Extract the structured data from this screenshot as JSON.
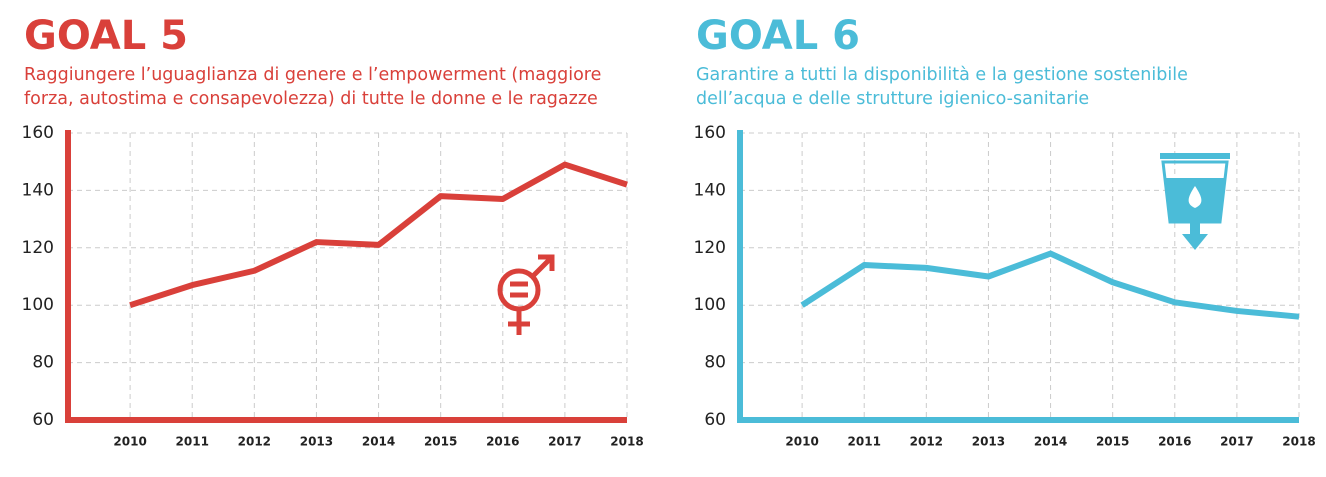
{
  "chart_data": [
    {
      "type": "line",
      "title": "GOAL 5",
      "subtitle": [
        "Raggiungere l’uguaglianza di genere e l’empowerment (maggiore",
        "forza, autostima e consapevolezza) di tutte le donne e le ragazze"
      ],
      "x": [
        2010,
        2011,
        2012,
        2013,
        2014,
        2015,
        2016,
        2017,
        2018
      ],
      "series": [
        {
          "color": "#d9403a",
          "values": [
            100,
            107,
            112,
            122,
            121,
            138,
            137,
            149,
            142
          ]
        }
      ],
      "xlim": [
        2009,
        2018
      ],
      "xticks": [
        2010,
        2011,
        2012,
        2013,
        2014,
        2015,
        2016,
        2017,
        2018
      ],
      "ylim": [
        60,
        160
      ],
      "yticks": [
        60,
        80,
        100,
        120,
        140,
        160
      ],
      "grid": true
    },
    {
      "type": "line",
      "title": "GOAL 6",
      "subtitle": [
        "Garantire a tutti la disponibilità e la gestione sostenibile",
        "dell’acqua e delle strutture igienico-sanitarie"
      ],
      "x": [
        2010,
        2011,
        2012,
        2013,
        2014,
        2015,
        2016,
        2017,
        2018
      ],
      "series": [
        {
          "color": "#4bbcd8",
          "values": [
            100,
            114,
            113,
            110,
            118,
            108,
            101,
            98,
            96
          ]
        }
      ],
      "xlim": [
        2009,
        2018
      ],
      "xticks": [
        2010,
        2011,
        2012,
        2013,
        2014,
        2015,
        2016,
        2017,
        2018
      ],
      "ylim": [
        60,
        160
      ],
      "yticks": [
        60,
        80,
        100,
        120,
        140,
        160
      ],
      "grid": true
    }
  ]
}
